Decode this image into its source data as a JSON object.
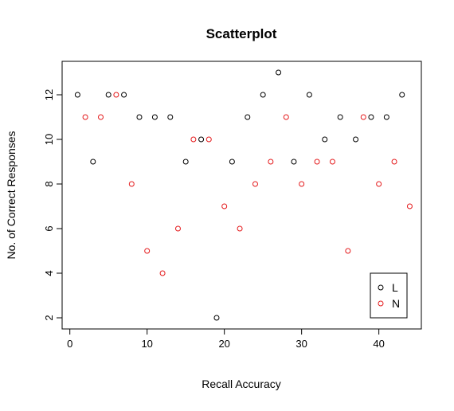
{
  "chart_data": {
    "type": "scatter",
    "title": "Scatterplot",
    "xlabel": "Recall Accuracy",
    "ylabel": "No. of Correct Responses",
    "xlim": [
      -1,
      45.5
    ],
    "ylim": [
      1.5,
      13.5
    ],
    "xticks": [
      "0",
      "10",
      "20",
      "30",
      "40"
    ],
    "yticks": [
      "2",
      "4",
      "6",
      "8",
      "10",
      "12"
    ],
    "grid": false,
    "legend_position": "bottom-right",
    "series": [
      {
        "name": "L",
        "color": "#000000",
        "marker": "open-circle",
        "x": [
          1,
          3,
          5,
          7,
          9,
          11,
          13,
          15,
          17,
          19,
          21,
          23,
          25,
          27,
          29,
          31,
          33,
          35,
          37,
          39,
          41,
          43
        ],
        "y": [
          12,
          9,
          12,
          12,
          11,
          11,
          11,
          9,
          10,
          2,
          9,
          11,
          12,
          13,
          9,
          12,
          10,
          11,
          10,
          11,
          11,
          12
        ]
      },
      {
        "name": "N",
        "color": "#e41a1c",
        "marker": "open-circle",
        "x": [
          2,
          4,
          6,
          8,
          10,
          12,
          14,
          16,
          18,
          20,
          22,
          24,
          26,
          28,
          30,
          32,
          34,
          36,
          38,
          40,
          42,
          44
        ],
        "y": [
          11,
          11,
          12,
          8,
          5,
          4,
          6,
          10,
          10,
          7,
          6,
          8,
          9,
          11,
          8,
          9,
          9,
          5,
          11,
          8,
          9,
          7
        ]
      }
    ]
  }
}
